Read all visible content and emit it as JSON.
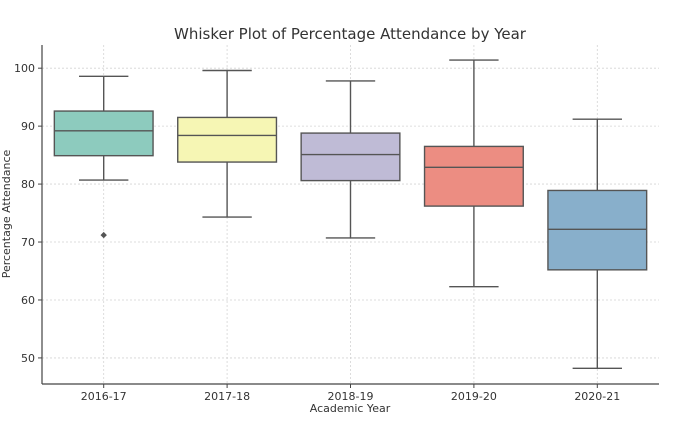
{
  "chart_data": {
    "type": "box",
    "title": "Whisker Plot of Percentage Attendance by Year",
    "xlabel": "Academic Year",
    "ylabel": "Percentage Attendance",
    "ylim": [
      45.5,
      104
    ],
    "yticks": [
      50,
      60,
      70,
      80,
      90,
      100
    ],
    "grid": true,
    "categories": [
      "2016-17",
      "2017-18",
      "2018-19",
      "2019-20",
      "2020-21"
    ],
    "boxes": [
      {
        "category": "2016-17",
        "whisker_low": 80.7,
        "q1": 84.9,
        "median": 89.2,
        "q3": 92.6,
        "whisker_high": 98.6,
        "outliers": [
          71.2
        ],
        "color": "#8dcbbe"
      },
      {
        "category": "2017-18",
        "whisker_low": 74.3,
        "q1": 83.8,
        "median": 88.4,
        "q3": 91.5,
        "whisker_high": 99.6,
        "outliers": [],
        "color": "#f6f6b4"
      },
      {
        "category": "2018-19",
        "whisker_low": 70.7,
        "q1": 80.6,
        "median": 85.1,
        "q3": 88.8,
        "whisker_high": 97.8,
        "outliers": [],
        "color": "#bfbbd6"
      },
      {
        "category": "2019-20",
        "whisker_low": 62.3,
        "q1": 76.2,
        "median": 82.9,
        "q3": 86.5,
        "whisker_high": 101.4,
        "outliers": [],
        "color": "#ec8d82"
      },
      {
        "category": "2020-21",
        "whisker_low": 48.2,
        "q1": 65.2,
        "median": 72.2,
        "q3": 78.9,
        "whisker_high": 91.2,
        "outliers": [],
        "color": "#88afcb"
      }
    ]
  }
}
